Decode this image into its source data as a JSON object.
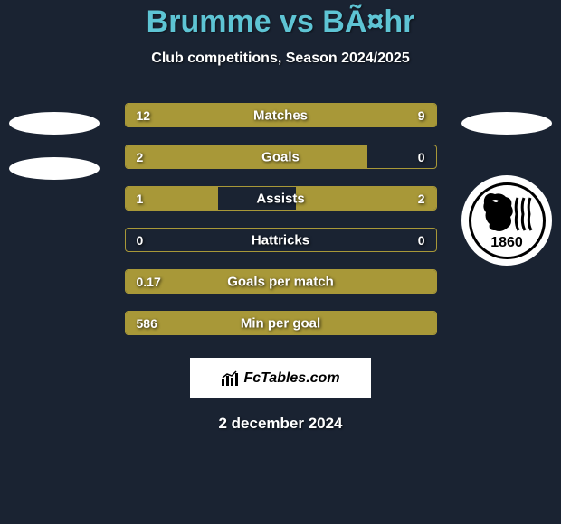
{
  "title": "Brumme vs BÃ¤hr",
  "subtitle": "Club competitions, Season 2024/2025",
  "date": "2 december 2024",
  "fctables_label": "FcTables.com",
  "club_year": "1860",
  "colors": {
    "background": "#1a2332",
    "title_color": "#5ec4d4",
    "bar_color": "#a89838",
    "text_color": "#ffffff"
  },
  "stats": [
    {
      "label": "Matches",
      "left_value": "12",
      "right_value": "9",
      "left_pct": 57,
      "right_pct": 43
    },
    {
      "label": "Goals",
      "left_value": "2",
      "right_value": "0",
      "left_pct": 78,
      "right_pct": 0
    },
    {
      "label": "Assists",
      "left_value": "1",
      "right_value": "2",
      "left_pct": 30,
      "right_pct": 45
    },
    {
      "label": "Hattricks",
      "left_value": "0",
      "right_value": "0",
      "left_pct": 0,
      "right_pct": 0
    },
    {
      "label": "Goals per match",
      "left_value": "0.17",
      "right_value": "",
      "left_pct": 100,
      "right_pct": 0
    },
    {
      "label": "Min per goal",
      "left_value": "586",
      "right_value": "",
      "left_pct": 100,
      "right_pct": 0
    }
  ]
}
